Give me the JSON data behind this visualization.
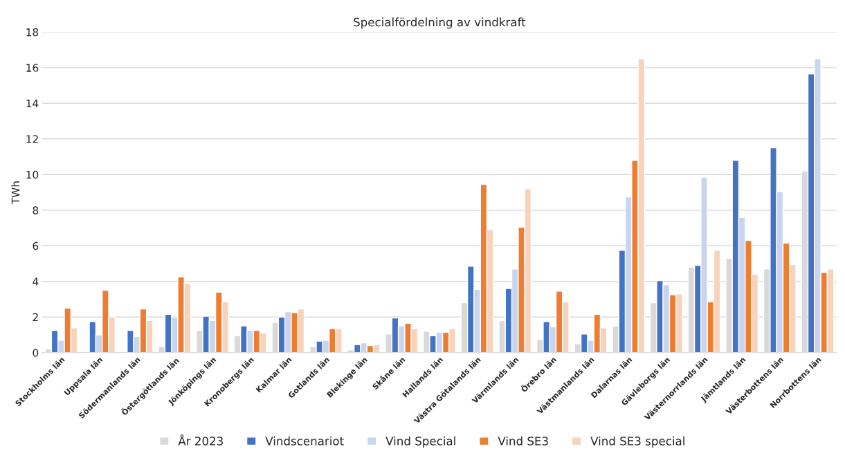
{
  "chart_data": {
    "type": "bar",
    "title": "Specialfördelning av vindkraft",
    "ylabel": "TWh",
    "categories": [
      "Stockholms län",
      "Uppsala län",
      "Södermanlands län",
      "Östergötlands län",
      "Jönköpings län",
      "Kronobergs län",
      "Kalmar län",
      "Gotlands län",
      "Blekinge län",
      "Skåne län",
      "Hallands län",
      "Västra Götalands län",
      "Värmlands län",
      "Örebro län",
      "Västmanlands län",
      "Dalarnas län",
      "Gävleborgs län",
      "Västernorrlands län",
      "Jämtlands län",
      "Västerbottens län",
      "Norrbottens län"
    ],
    "series": [
      {
        "name": "År 2023",
        "color": "#d9d9d9",
        "values": [
          0.2,
          null,
          null,
          0.35,
          1.25,
          0.95,
          1.7,
          0.35,
          0.15,
          1.05,
          1.2,
          2.8,
          1.8,
          0.75,
          0.5,
          1.5,
          2.8,
          4.8,
          5.3,
          4.7,
          10.2
        ]
      },
      {
        "name": "Vindscenariot",
        "color": "#4472c4",
        "values": [
          1.25,
          1.75,
          1.25,
          2.15,
          2.05,
          1.5,
          2.0,
          0.65,
          0.45,
          1.95,
          0.95,
          4.85,
          3.6,
          1.75,
          1.05,
          5.75,
          4.05,
          4.9,
          10.8,
          11.5,
          15.65
        ]
      },
      {
        "name": "Vind Special",
        "color": "#c9d5ee",
        "values": [
          0.7,
          1.0,
          0.9,
          2.0,
          1.8,
          1.25,
          2.3,
          0.7,
          0.55,
          1.5,
          1.15,
          3.55,
          4.7,
          1.45,
          0.7,
          8.75,
          3.8,
          9.85,
          7.6,
          9.05,
          16.5
        ]
      },
      {
        "name": "Vind SE3",
        "color": "#ed7d31",
        "values": [
          2.5,
          3.5,
          2.45,
          4.25,
          3.4,
          1.25,
          2.25,
          1.35,
          0.4,
          1.65,
          1.15,
          9.45,
          7.05,
          3.45,
          2.15,
          10.8,
          3.25,
          2.85,
          6.3,
          6.15,
          4.5
        ]
      },
      {
        "name": "Vind SE3 special",
        "color": "#f8d3bb",
        "values": [
          1.4,
          2.0,
          1.8,
          3.9,
          2.85,
          1.1,
          2.45,
          1.35,
          0.45,
          1.35,
          1.35,
          6.9,
          9.2,
          2.85,
          1.4,
          16.5,
          3.3,
          5.75,
          4.4,
          4.95,
          4.7
        ]
      }
    ],
    "ylim": [
      0,
      18
    ],
    "yticks": [
      0,
      2,
      4,
      6,
      8,
      10,
      12,
      14,
      16,
      18
    ],
    "grid": "y",
    "legend": "bottom"
  }
}
